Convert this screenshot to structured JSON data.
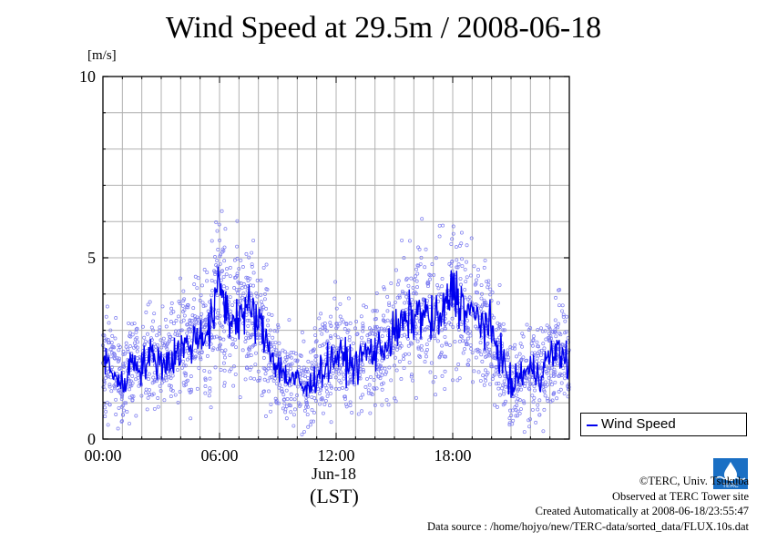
{
  "chart_data": {
    "type": "line",
    "title": "Wind Speed at 29.5m / 2008-06-18",
    "ylabel": "[m/s]",
    "ylim": [
      0,
      10
    ],
    "yticks": [
      "0",
      "5",
      "10"
    ],
    "xlim": [
      "00:00",
      "24:00"
    ],
    "xticks": [
      "00:00",
      "06:00",
      "12:00",
      "18:00"
    ],
    "x_date_label": "Jun-18",
    "x_timezone_label": "(LST)",
    "grid": true,
    "legend_position": "right-bottom",
    "series": [
      {
        "name": "Wind Speed",
        "color": "#0000ee",
        "scatter_color": "#7b7bf0",
        "points": [
          {
            "x": "00:00",
            "y": 2.2
          },
          {
            "x": "00:30",
            "y": 1.9
          },
          {
            "x": "01:00",
            "y": 1.4
          },
          {
            "x": "01:30",
            "y": 2.2
          },
          {
            "x": "02:00",
            "y": 2.0
          },
          {
            "x": "02:30",
            "y": 2.3
          },
          {
            "x": "03:00",
            "y": 2.1
          },
          {
            "x": "03:30",
            "y": 2.2
          },
          {
            "x": "04:00",
            "y": 2.5
          },
          {
            "x": "04:30",
            "y": 2.6
          },
          {
            "x": "05:00",
            "y": 2.9
          },
          {
            "x": "05:30",
            "y": 3.0
          },
          {
            "x": "06:00",
            "y": 4.3
          },
          {
            "x": "06:30",
            "y": 3.3
          },
          {
            "x": "07:00",
            "y": 3.4
          },
          {
            "x": "07:30",
            "y": 3.6
          },
          {
            "x": "08:00",
            "y": 3.2
          },
          {
            "x": "08:30",
            "y": 2.6
          },
          {
            "x": "09:00",
            "y": 2.0
          },
          {
            "x": "09:30",
            "y": 1.7
          },
          {
            "x": "10:00",
            "y": 1.6
          },
          {
            "x": "10:30",
            "y": 1.3
          },
          {
            "x": "11:00",
            "y": 1.8
          },
          {
            "x": "11:30",
            "y": 2.0
          },
          {
            "x": "12:00",
            "y": 2.3
          },
          {
            "x": "12:30",
            "y": 2.2
          },
          {
            "x": "13:00",
            "y": 2.0
          },
          {
            "x": "13:30",
            "y": 2.4
          },
          {
            "x": "14:00",
            "y": 2.4
          },
          {
            "x": "14:30",
            "y": 2.6
          },
          {
            "x": "15:00",
            "y": 2.9
          },
          {
            "x": "15:30",
            "y": 3.2
          },
          {
            "x": "16:00",
            "y": 3.4
          },
          {
            "x": "16:30",
            "y": 3.5
          },
          {
            "x": "17:00",
            "y": 3.2
          },
          {
            "x": "17:30",
            "y": 3.4
          },
          {
            "x": "18:00",
            "y": 4.2
          },
          {
            "x": "18:30",
            "y": 3.7
          },
          {
            "x": "19:00",
            "y": 3.4
          },
          {
            "x": "19:30",
            "y": 3.3
          },
          {
            "x": "20:00",
            "y": 2.9
          },
          {
            "x": "20:30",
            "y": 2.3
          },
          {
            "x": "21:00",
            "y": 1.4
          },
          {
            "x": "21:30",
            "y": 1.8
          },
          {
            "x": "22:00",
            "y": 1.9
          },
          {
            "x": "22:30",
            "y": 1.8
          },
          {
            "x": "23:00",
            "y": 2.3
          },
          {
            "x": "23:30",
            "y": 2.4
          },
          {
            "x": "24:00",
            "y": 2.1
          }
        ]
      }
    ]
  },
  "credits": {
    "line1": "©TERC, Univ. Tsukuba",
    "line2": "Observed at TERC Tower site",
    "line3": "Created Automatically at 2008-06-18/23:55:47",
    "line4": "Data source : /home/hojyo/new/TERC-data/sorted_data/FLUX.10s.dat"
  },
  "logo_text": "TERC"
}
